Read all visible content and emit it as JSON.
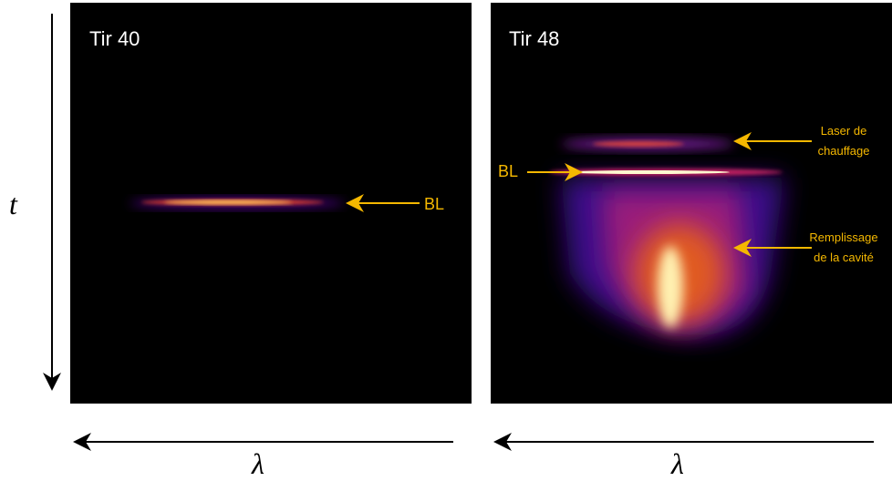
{
  "figure": {
    "time_axis_label": "t",
    "panels": [
      {
        "title": "Tir 40",
        "wavelength_axis_label": "λ",
        "annotations": [
          {
            "lines": [
              "BL"
            ]
          }
        ]
      },
      {
        "title": "Tir 48",
        "wavelength_axis_label": "λ",
        "annotations": [
          {
            "lines": [
              "Laser de",
              "chauffage"
            ]
          },
          {
            "lines": [
              "BL"
            ]
          },
          {
            "lines": [
              "Remplissage",
              "de la cavité"
            ]
          }
        ]
      }
    ]
  }
}
